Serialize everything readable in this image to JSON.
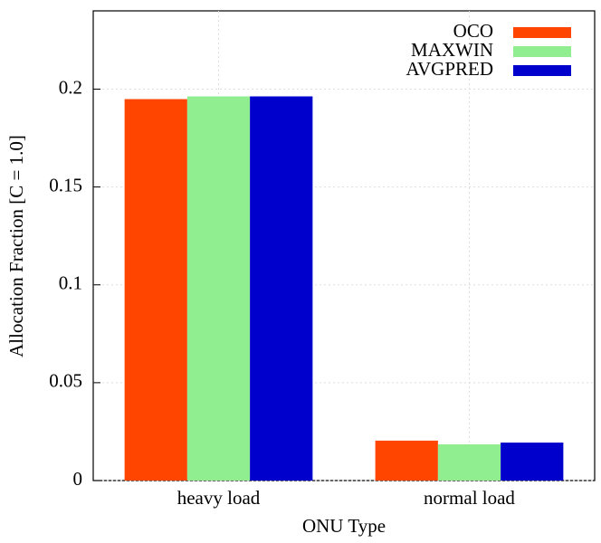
{
  "chart_data": {
    "type": "bar",
    "x_label": "ONU Type",
    "y_label": "Allocation Fraction [C = 1.0]",
    "categories": [
      "heavy load",
      "normal load"
    ],
    "series": [
      {
        "name": "OCO",
        "color": "#ff4500",
        "values": [
          0.1949,
          0.0204
        ]
      },
      {
        "name": "MAXWIN",
        "color": "#90ee90",
        "values": [
          0.1963,
          0.0185
        ]
      },
      {
        "name": "AVGPRED",
        "color": "#0000cd",
        "values": [
          0.1963,
          0.0194
        ]
      }
    ],
    "ylim": [
      0,
      0.24
    ],
    "yticks": [
      0,
      0.05,
      0.1,
      0.15,
      0.2
    ],
    "grid": true,
    "legend": "top-right"
  }
}
